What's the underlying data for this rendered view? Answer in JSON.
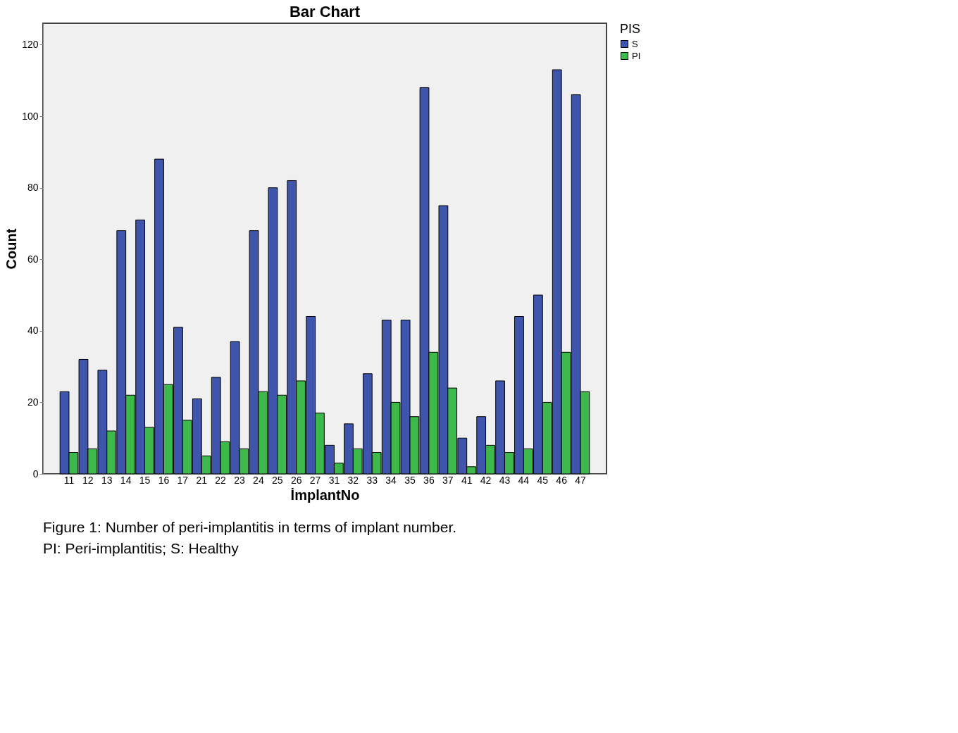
{
  "chart_data": {
    "type": "bar",
    "title": "Bar Chart",
    "xlabel": "İmplantNo",
    "ylabel": "Count",
    "legend_title": "PIS",
    "categories": [
      "11",
      "12",
      "13",
      "14",
      "15",
      "16",
      "17",
      "21",
      "22",
      "23",
      "24",
      "25",
      "26",
      "27",
      "31",
      "32",
      "33",
      "34",
      "35",
      "36",
      "37",
      "41",
      "42",
      "43",
      "44",
      "45",
      "46",
      "47"
    ],
    "series": [
      {
        "name": "S",
        "color": "#3e55ab",
        "values": [
          23,
          32,
          29,
          68,
          71,
          88,
          41,
          21,
          27,
          37,
          68,
          80,
          82,
          44,
          8,
          14,
          28,
          43,
          43,
          108,
          75,
          10,
          16,
          26,
          44,
          50,
          113,
          106
        ]
      },
      {
        "name": "PI",
        "color": "#3cb94a",
        "values": [
          6,
          7,
          12,
          22,
          13,
          25,
          15,
          5,
          9,
          7,
          23,
          22,
          26,
          17,
          3,
          7,
          6,
          20,
          16,
          34,
          24,
          2,
          8,
          6,
          7,
          20,
          34,
          23
        ]
      }
    ],
    "ylim": [
      0,
      126
    ],
    "yticks": [
      0,
      20,
      40,
      60,
      80,
      100,
      120
    ],
    "grid": false,
    "legend": "top right",
    "annotations": [
      "Figure 1: Number of peri-implantitis in terms of implant number.",
      "PI: Peri-implantitis; S: Healthy"
    ]
  }
}
